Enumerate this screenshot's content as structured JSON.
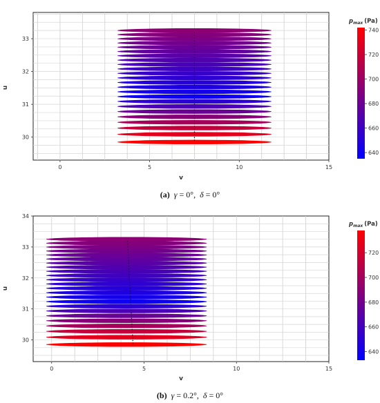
{
  "chart_data": [
    {
      "type": "scatter",
      "subtype": "stack of horizontal elliptical bands colored by pressure",
      "xlabel": "v",
      "ylabel": "u",
      "xlim": [
        -1.5,
        15
      ],
      "ylim": [
        29.3,
        33.8
      ],
      "x_ticks": [
        0,
        5,
        10,
        15
      ],
      "y_ticks": [
        30,
        31,
        32,
        33
      ],
      "grid": true,
      "colorbar": {
        "title_main": "p",
        "title_sub": "max",
        "title_unit": "(Pa)",
        "range": [
          635,
          742
        ],
        "ticks": [
          640,
          660,
          680,
          700,
          720,
          740
        ],
        "colors": [
          "#0000ff",
          "#ff0000"
        ],
        "placement": "right"
      },
      "band_x_range": [
        3.2,
        11.8
      ],
      "band_u_top": 33.25,
      "band_u_bottom": 29.85,
      "band_count": 24,
      "center_line_x": 7.5,
      "caption": {
        "letter": "(a)",
        "param1_sym": "γ",
        "param1_val": " = 0°,",
        "param2_sym": "δ",
        "param2_val": " = 0°"
      }
    },
    {
      "type": "scatter",
      "subtype": "stack of horizontal elliptical bands colored by pressure",
      "xlabel": "v",
      "ylabel": "u",
      "xlim": [
        -1,
        15
      ],
      "ylim": [
        29.3,
        34
      ],
      "x_ticks": [
        0,
        5,
        10,
        15
      ],
      "y_ticks": [
        30,
        31,
        32,
        33,
        34
      ],
      "grid": true,
      "colorbar": {
        "title_main": "p",
        "title_sub": "max",
        "title_unit": "(Pa)",
        "range": [
          633,
          738
        ],
        "ticks": [
          640,
          660,
          680,
          700,
          720
        ],
        "colors": [
          "#0000ff",
          "#ff0000"
        ],
        "placement": "right"
      },
      "band_x_range": [
        -0.3,
        8.4
      ],
      "band_u_top": 33.25,
      "band_u_bottom": 29.85,
      "band_count": 24,
      "center_line_x": 4.1,
      "center_line_x_end": 4.4,
      "caption": {
        "letter": "(b)",
        "param1_sym": "γ",
        "param1_val": " = 0.2°,",
        "param2_sym": "δ",
        "param2_val": " = 0°"
      }
    }
  ]
}
